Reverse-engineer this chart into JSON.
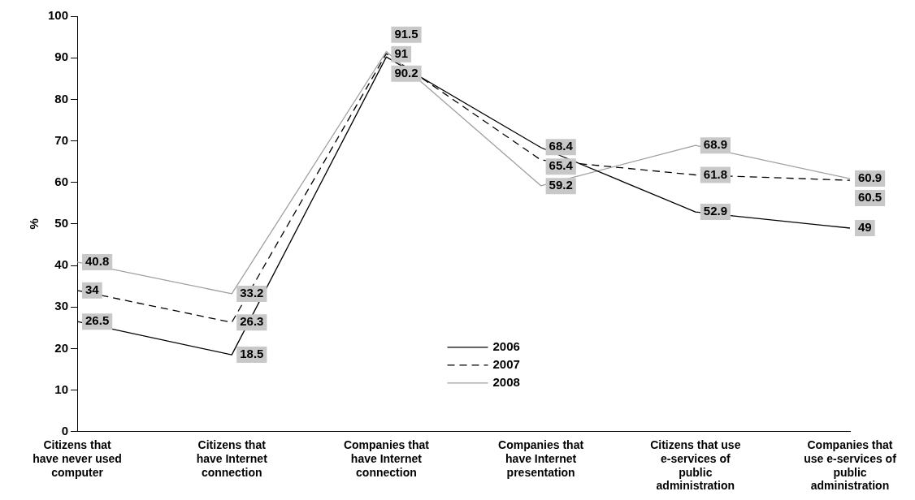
{
  "chart_data": {
    "type": "line",
    "ylabel": "%",
    "categories": [
      "Citizens that have never used computer",
      "Citizens that have Internet connection",
      "Companies that have Internet connection",
      "Companies that have Internet presentation",
      "Citizens that use e-services of public administration",
      "Companies that use e-services of public administration"
    ],
    "series": [
      {
        "name": "2006",
        "color": "#000000",
        "line_style": "solid",
        "values": [
          26.5,
          18.5,
          90.2,
          68.4,
          52.9,
          49
        ]
      },
      {
        "name": "2007",
        "color": "#000000",
        "line_style": "dashed",
        "values": [
          34,
          26.3,
          91,
          65.4,
          61.8,
          60.5
        ]
      },
      {
        "name": "2008",
        "color": "#a0a0a0",
        "line_style": "solid",
        "values": [
          40.8,
          33.2,
          91.5,
          59.2,
          68.9,
          60.9
        ]
      }
    ],
    "ylim": [
      0,
      100
    ],
    "yticks": [
      0,
      10,
      20,
      30,
      40,
      50,
      60,
      70,
      80,
      90,
      100
    ],
    "grid": false,
    "legend": "bottom",
    "data_labels": true
  }
}
